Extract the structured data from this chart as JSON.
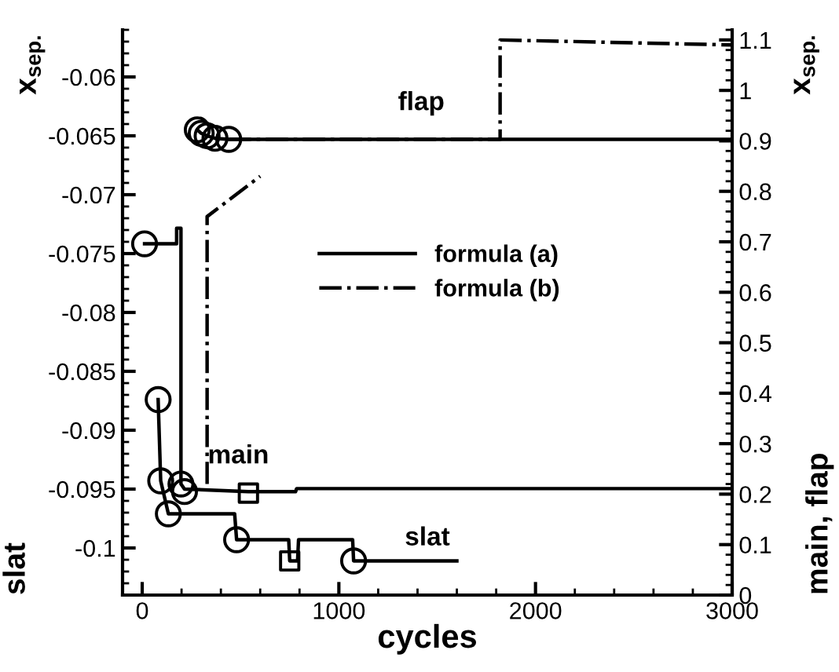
{
  "chart_data": {
    "type": "line",
    "xlabel": "cycles",
    "ylabel": "slat",
    "y2label": "main, flap",
    "annotations": [
      "x$_{sep.}$",
      "x$_{sep.}$",
      "flap",
      "main",
      "slat"
    ],
    "xlim": [
      -100,
      3000
    ],
    "xticks": [
      0,
      1000,
      2000,
      3000
    ],
    "ylim": [
      -0.104,
      -0.056
    ],
    "yticks": [
      -0.1,
      -0.095,
      -0.09,
      -0.085,
      -0.08,
      -0.075,
      -0.07,
      -0.065,
      -0.06
    ],
    "y2lim": [
      0,
      1.12
    ],
    "y2ticks": [
      0,
      0.1,
      0.2,
      0.3,
      0.4,
      0.5,
      0.6,
      0.7,
      0.8,
      0.9,
      1,
      1.1
    ],
    "grid": false,
    "legend": "center",
    "series": [
      {
        "name": "formula (a)",
        "color": "#000000",
        "line_style": "solid",
        "marker": "none",
        "x": [
          81,
          94,
          133,
          470,
          480,
          745,
          750,
          790,
          795,
          1070,
          1075,
          1600
        ],
        "values": [
          -0.0874,
          -0.0943,
          -0.0971,
          -0.0971,
          -0.0993,
          -0.0993,
          -0.1011,
          -0.1011,
          -0.0993,
          -0.0993,
          -0.1011,
          -0.1011
        ]
      },
      {
        "color": "#000000",
        "line_style": "solid",
        "marker": "none",
        "axis": "y2",
        "x": [
          12,
          175,
          175,
          197,
          197,
          215,
          540,
          780,
          785,
          3000
        ],
        "values": [
          0.696,
          0.696,
          0.727,
          0.727,
          0.22,
          0.21,
          0.205,
          0.205,
          0.211,
          0.211
        ]
      },
      {
        "color": "#000000",
        "line_style": "solid",
        "marker": "none",
        "axis": "y2",
        "x": [
          280,
          300,
          330,
          370,
          440,
          3000
        ],
        "values": [
          0.922,
          0.915,
          0.91,
          0.905,
          0.903,
          0.903
        ]
      },
      {
        "name": "formula (b)",
        "color": "#000000",
        "line_style": "dashdot",
        "marker": "none",
        "axis": "y2",
        "x": [
          330,
          330,
          600
        ],
        "values": [
          0.22,
          0.75,
          0.83
        ]
      },
      {
        "color": "#000000",
        "line_style": "dashdot",
        "marker": "none",
        "axis": "y2",
        "x": [
          440,
          1820,
          1820,
          3000
        ],
        "values": [
          0.903,
          0.903,
          1.1,
          1.09
        ]
      },
      {
        "type": "scatter",
        "color": "#000000",
        "marker": "circle",
        "x": [
          81,
          94,
          133,
          480,
          1075
        ],
        "values": [
          -0.0874,
          -0.0943,
          -0.0971,
          -0.0993,
          -0.1011
        ]
      },
      {
        "type": "scatter",
        "color": "#000000",
        "marker": "square",
        "x": [
          750
        ],
        "values": [
          -0.1011
        ]
      },
      {
        "type": "scatter",
        "color": "#000000",
        "marker": "circle",
        "axis": "y2",
        "x": [
          12,
          197,
          210,
          215,
          280,
          300,
          330,
          370,
          440
        ],
        "values": [
          0.696,
          0.22,
          null,
          0.205,
          0.922,
          0.915,
          0.91,
          0.905,
          0.903
        ]
      },
      {
        "type": "scatter",
        "color": "#000000",
        "marker": "square",
        "axis": "y2",
        "x": [
          540
        ],
        "values": [
          0.202
        ]
      }
    ]
  }
}
